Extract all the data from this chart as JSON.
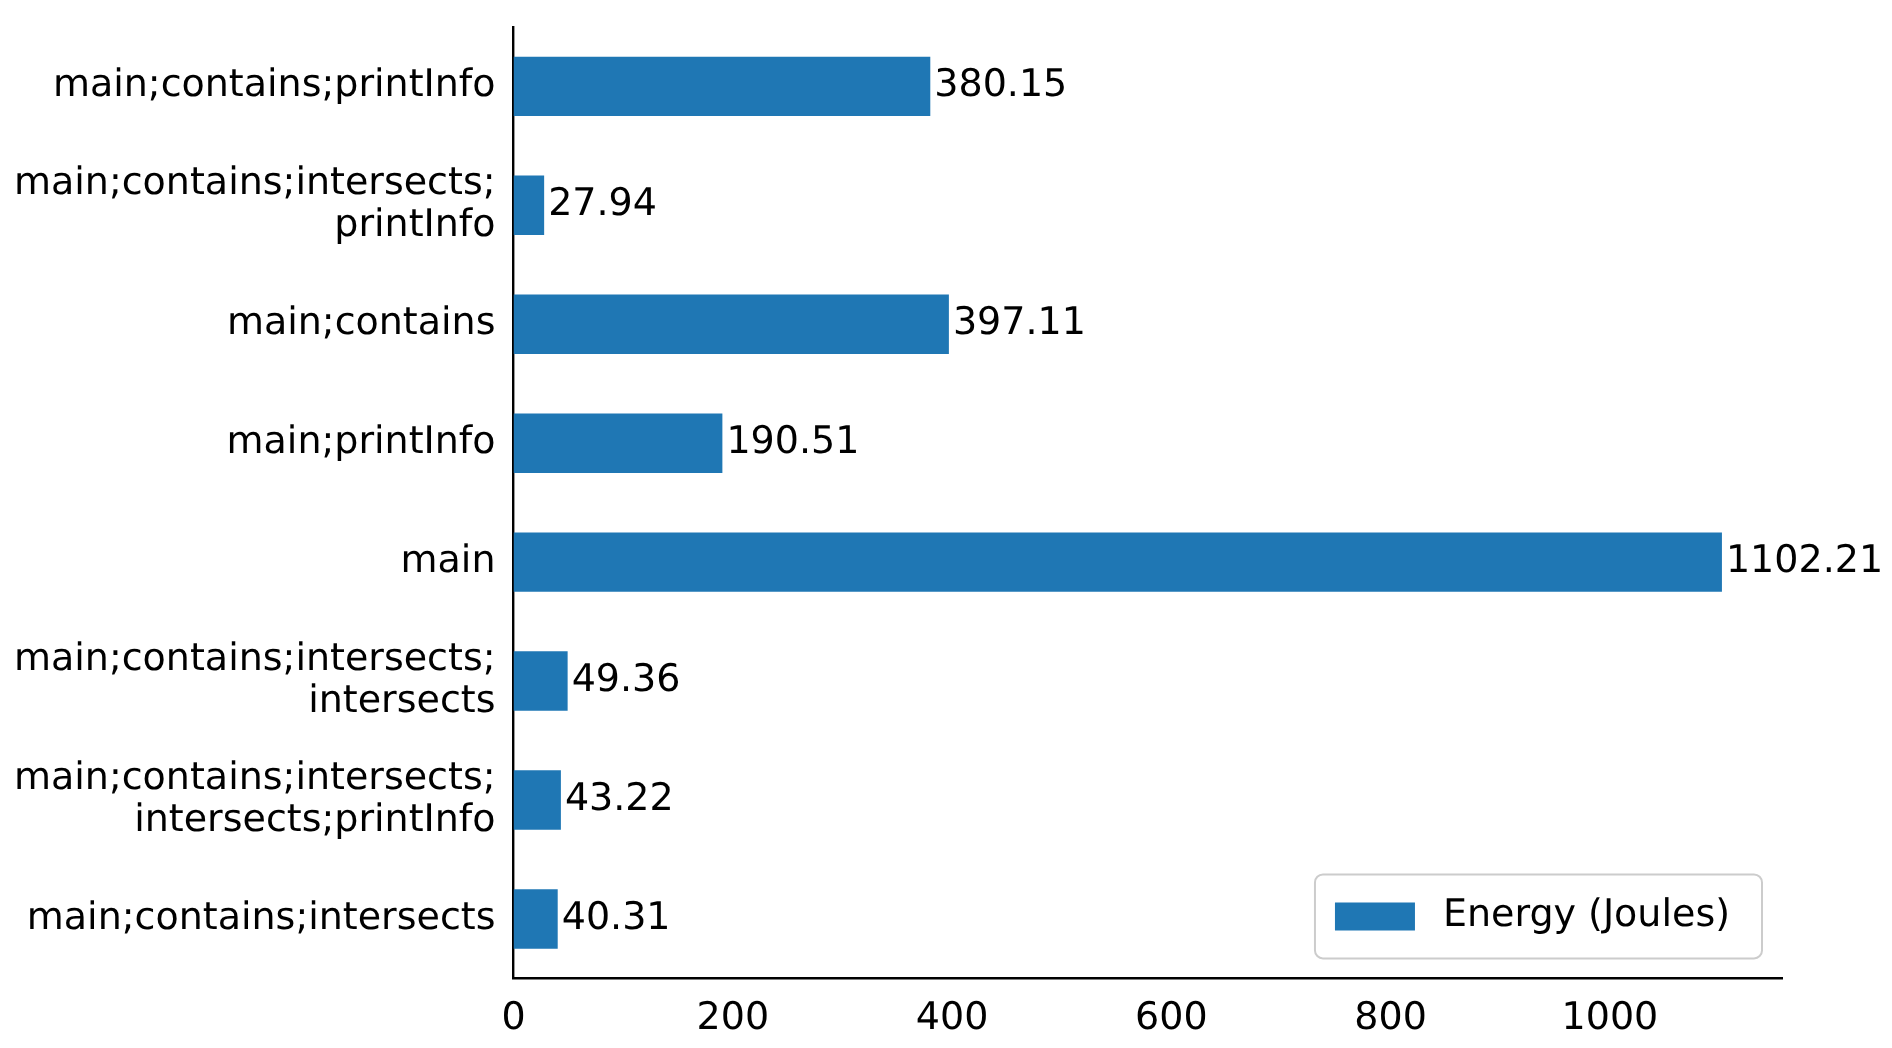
{
  "chart_data": {
    "type": "bar",
    "orientation": "horizontal",
    "categories": [
      "main;contains;printInfo",
      "main;contains;intersects;printInfo",
      "main;contains",
      "main;printInfo",
      "main",
      "main;contains;intersects;intersects",
      "main;contains;intersects;intersects;printInfo",
      "main;contains;intersects"
    ],
    "series": [
      {
        "name": "Energy (Joules)",
        "color": "#1f77b4",
        "values": [
          380.15,
          27.94,
          397.11,
          190.51,
          1102.21,
          49.36,
          43.22,
          40.31
        ]
      }
    ],
    "xlim": [
      0,
      1157
    ],
    "xticks": [
      0,
      200,
      400,
      600,
      800,
      1000
    ],
    "grid": false,
    "legend": "bottom right",
    "data_labels": true
  }
}
